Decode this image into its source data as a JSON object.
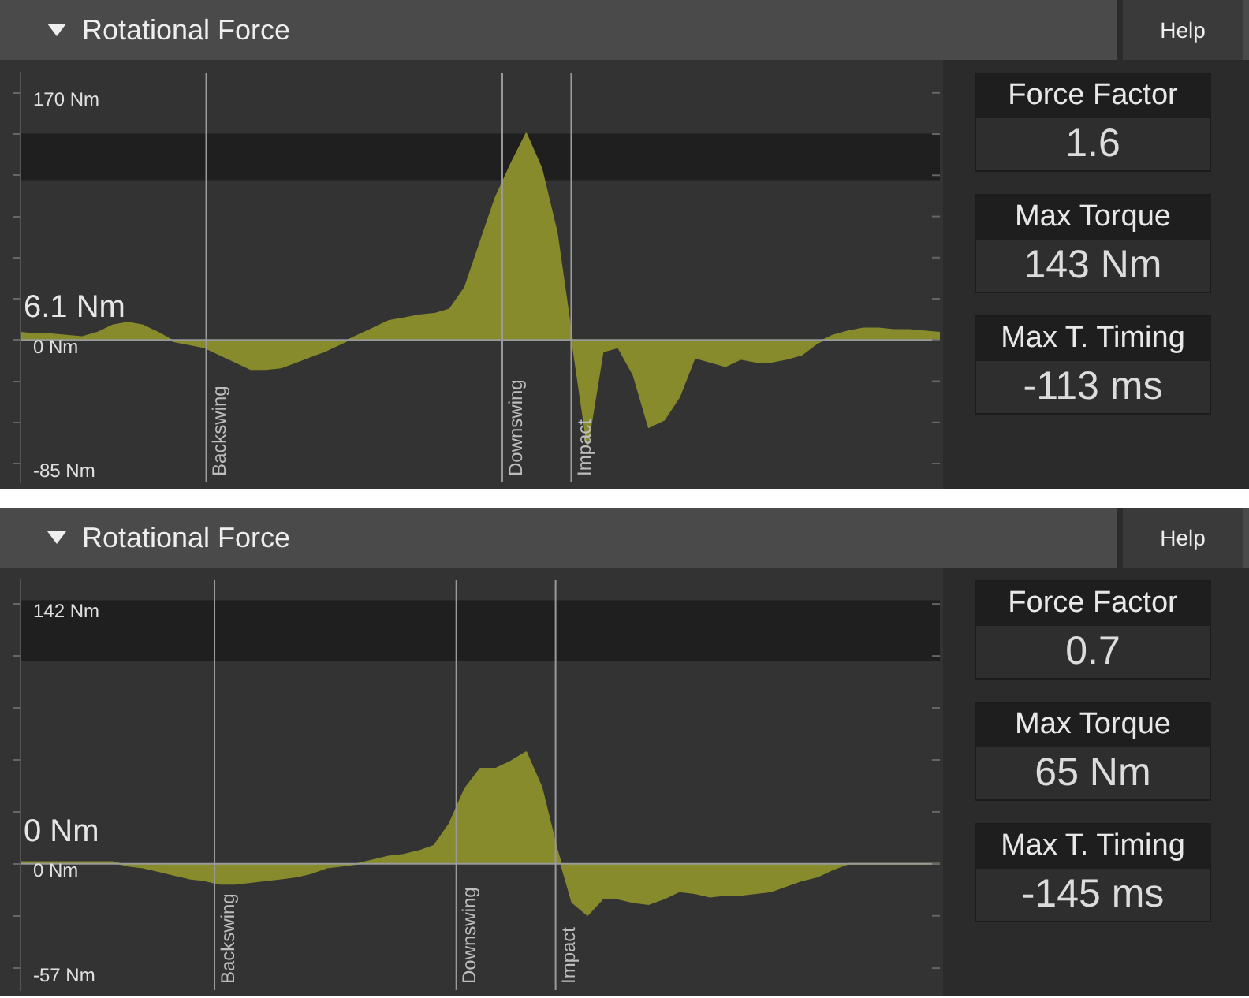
{
  "chart_data": [
    {
      "type": "area",
      "title": "Rotational Force",
      "color": "#878b2c",
      "ylim": [
        -98,
        184
      ],
      "categories": [
        null,
        null,
        null,
        null,
        null,
        null,
        null,
        null,
        null,
        null,
        null,
        null,
        null,
        null,
        null,
        null,
        null,
        null,
        null,
        null,
        null,
        null,
        null,
        null,
        null,
        null,
        null,
        null,
        null,
        null,
        null,
        null,
        null,
        null,
        null,
        null,
        null,
        null,
        null,
        null,
        null,
        null,
        null,
        null,
        null,
        null,
        null,
        null,
        null,
        null,
        null,
        null,
        null,
        null,
        null,
        null,
        null,
        null,
        null,
        null,
        null
      ],
      "values": [
        5,
        4,
        4,
        3,
        2,
        5,
        10,
        12,
        10,
        5,
        -1,
        -3,
        -5,
        -10,
        -15,
        -20,
        -20,
        -19,
        -15,
        -11,
        -7,
        -2,
        3,
        8,
        13,
        15,
        17,
        18,
        21,
        36,
        67,
        98,
        121,
        142,
        118,
        74,
        0,
        -73,
        -8,
        -5,
        -24,
        -60,
        -55,
        -39,
        -12,
        -15,
        -18,
        -13,
        -15,
        -15,
        -13,
        -10,
        -2,
        3,
        6,
        8,
        8,
        7,
        7,
        6,
        5
      ],
      "yticks": [
        {
          "value": 170,
          "label": "170 Nm"
        },
        {
          "value": 141.67,
          "label": null
        },
        {
          "value": 113.33,
          "label": null
        },
        {
          "value": 85,
          "label": null
        },
        {
          "value": 56.67,
          "label": null
        },
        {
          "value": 28.33,
          "label": null
        },
        {
          "value": 0,
          "label": "0 Nm"
        },
        {
          "value": -28.33,
          "label": null
        },
        {
          "value": -56.67,
          "label": null
        },
        {
          "value": -85,
          "label": "-85 Nm"
        }
      ],
      "ref_lines": [
        {
          "axis": "y",
          "value": 0
        }
      ],
      "bands": [
        {
          "axis": "y",
          "from": 110,
          "to": 142,
          "color": "#1f1f1f"
        }
      ],
      "annotations": [
        "6.1 Nm",
        "Help",
        "Backswing",
        "Downswing",
        "Impact"
      ]
    },
    {
      "type": "other",
      "annotations": [
        "Force Factor",
        "1.6",
        "Max Torque",
        "143 Nm",
        "Max T. Timing",
        "-113 ms"
      ]
    },
    {
      "type": "area",
      "title": "Rotational Force",
      "color": "#878b2c",
      "ylim": [
        -69,
        155
      ],
      "categories": [
        null,
        null,
        null,
        null,
        null,
        null,
        null,
        null,
        null,
        null,
        null,
        null,
        null,
        null,
        null,
        null,
        null,
        null,
        null,
        null,
        null,
        null,
        null,
        null,
        null,
        null,
        null,
        null,
        null,
        null,
        null,
        null,
        null,
        null,
        null,
        null,
        null,
        null,
        null,
        null,
        null,
        null,
        null,
        null,
        null,
        null,
        null,
        null,
        null,
        null,
        null,
        null,
        null,
        null,
        null,
        null,
        null,
        null,
        null,
        null,
        null
      ],
      "values": [
        1,
        1,
        1,
        1,
        1,
        1,
        1,
        -1,
        -2,
        -4,
        -6,
        -8,
        -9,
        -11,
        -11,
        -10,
        -9,
        -8,
        -7,
        -5,
        -2,
        -1,
        0,
        2,
        4,
        5,
        7,
        10,
        22,
        41,
        52,
        52,
        56,
        61,
        42,
        8,
        -21,
        -28,
        -19,
        -19,
        -21,
        -22,
        -19,
        -15,
        -16,
        -18,
        -17,
        -17,
        -16,
        -15,
        -12,
        -9,
        -7,
        -3,
        0,
        0,
        0,
        0,
        0,
        0,
        0
      ],
      "yticks": [
        {
          "value": 142,
          "label": "142 Nm"
        },
        {
          "value": 113.6,
          "label": null
        },
        {
          "value": 85.2,
          "label": null
        },
        {
          "value": 56.8,
          "label": null
        },
        {
          "value": 28.4,
          "label": null
        },
        {
          "value": 0,
          "label": "0 Nm"
        },
        {
          "value": -28.4,
          "label": null
        },
        {
          "value": -57,
          "label": "-57 Nm"
        }
      ],
      "ref_lines": [
        {
          "axis": "y",
          "value": 0
        }
      ],
      "bands": [
        {
          "axis": "y",
          "from": 111,
          "to": 144,
          "color": "#1f1f1f"
        }
      ],
      "annotations": [
        "0 Nm",
        "Help",
        "Backswing",
        "Downswing",
        "Impact"
      ]
    },
    {
      "type": "other",
      "annotations": [
        "Force Factor",
        "0.7",
        "Max Torque",
        "65 Nm",
        "Max T. Timing",
        "-145 ms"
      ]
    }
  ]
}
